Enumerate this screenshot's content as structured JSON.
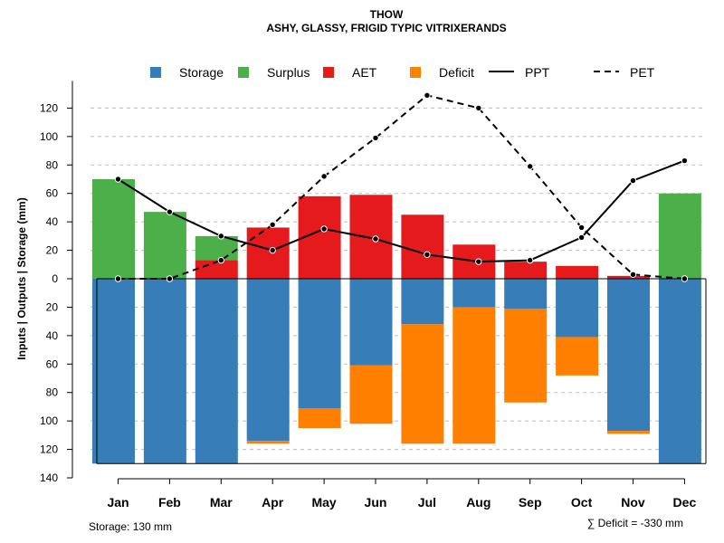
{
  "chart_data": {
    "type": "bar",
    "title": "THOW",
    "subtitle": "ASHY, GLASSY, FRIGID TYPIC VITRIXERANDS",
    "ylabel": "Inputs | Outputs | Storage    (mm)",
    "ylim": [
      -140,
      135
    ],
    "yticks": [
      -140,
      -120,
      -100,
      -80,
      -60,
      -40,
      -20,
      0,
      20,
      40,
      60,
      80,
      100,
      120
    ],
    "ytick_labels": [
      "140",
      "120",
      "100",
      "80",
      "60",
      "40",
      "20",
      "0",
      "20",
      "40",
      "60",
      "80",
      "100",
      "120"
    ],
    "categories": [
      "Jan",
      "Feb",
      "Mar",
      "Apr",
      "May",
      "Jun",
      "Jul",
      "Aug",
      "Sep",
      "Oct",
      "Nov",
      "Dec"
    ],
    "legend": [
      {
        "label": "Storage",
        "kind": "box",
        "color": "#377eb8"
      },
      {
        "label": "Surplus",
        "kind": "box",
        "color": "#4daf4a"
      },
      {
        "label": "AET",
        "kind": "box",
        "color": "#e41a1c"
      },
      {
        "label": "Deficit",
        "kind": "box",
        "color": "#ff7f00"
      },
      {
        "label": "PPT",
        "kind": "solid"
      },
      {
        "label": "PET",
        "kind": "dashed"
      }
    ],
    "series": [
      {
        "name": "Storage",
        "values": [
          130,
          130,
          130,
          114,
          91,
          61,
          32,
          20,
          21,
          41,
          107,
          130
        ]
      },
      {
        "name": "Surplus",
        "values": [
          70,
          47,
          17,
          0,
          0,
          0,
          0,
          0,
          0,
          0,
          0,
          60
        ]
      },
      {
        "name": "AET",
        "values": [
          0,
          0,
          13,
          36,
          58,
          59,
          45,
          24,
          12,
          9,
          2,
          0
        ]
      },
      {
        "name": "Deficit",
        "values": [
          0,
          0,
          0,
          2,
          14,
          41,
          84,
          96,
          66,
          27,
          2,
          0
        ]
      },
      {
        "name": "PPT",
        "values": [
          70,
          47,
          30,
          20,
          35,
          28,
          17,
          12,
          13,
          29,
          69,
          83
        ]
      },
      {
        "name": "PET",
        "values": [
          0,
          0,
          13,
          38,
          72,
          99,
          129,
          120,
          79,
          36,
          3,
          0
        ]
      }
    ],
    "colors": {
      "storage": "#377eb8",
      "surplus": "#4daf4a",
      "aet": "#e41a1c",
      "deficit": "#ff7f00",
      "grid": "#bebebe",
      "line": "#000000"
    },
    "footnotes": {
      "storage": "Storage: 130 mm",
      "deficit": "∑ Deficit = -330 mm"
    }
  }
}
